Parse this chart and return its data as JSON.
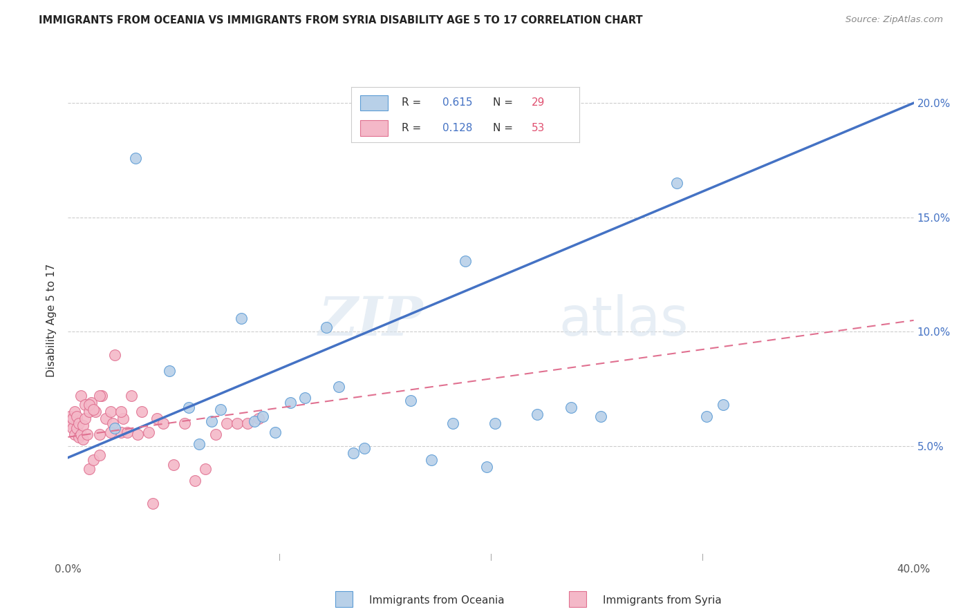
{
  "title": "IMMIGRANTS FROM OCEANIA VS IMMIGRANTS FROM SYRIA DISABILITY AGE 5 TO 17 CORRELATION CHART",
  "source": "Source: ZipAtlas.com",
  "ylabel": "Disability Age 5 to 17",
  "xlim": [
    0.0,
    0.4
  ],
  "ylim": [
    0.0,
    0.21
  ],
  "xticks": [
    0.0,
    0.1,
    0.2,
    0.3,
    0.4
  ],
  "xtick_labels": [
    "0.0%",
    "",
    "",
    "",
    "40.0%"
  ],
  "yticks_right": [
    0.05,
    0.1,
    0.15,
    0.2
  ],
  "ytick_labels_right": [
    "5.0%",
    "10.0%",
    "15.0%",
    "20.0%"
  ],
  "color_oceania": "#b8d0e8",
  "color_oceania_edge": "#5b9bd5",
  "color_oceania_line": "#4472c4",
  "color_syria": "#f4b8c8",
  "color_syria_edge": "#e07090",
  "color_syria_line": "#e07090",
  "watermark_zip": "ZIP",
  "watermark_atlas": "atlas",
  "oceania_x": [
    0.022,
    0.032,
    0.048,
    0.057,
    0.062,
    0.068,
    0.072,
    0.082,
    0.088,
    0.092,
    0.098,
    0.105,
    0.112,
    0.122,
    0.128,
    0.135,
    0.14,
    0.162,
    0.172,
    0.182,
    0.188,
    0.198,
    0.202,
    0.222,
    0.238,
    0.252,
    0.288,
    0.302,
    0.31
  ],
  "oceania_y": [
    0.058,
    0.176,
    0.083,
    0.067,
    0.051,
    0.061,
    0.066,
    0.106,
    0.061,
    0.063,
    0.056,
    0.069,
    0.071,
    0.102,
    0.076,
    0.047,
    0.049,
    0.07,
    0.044,
    0.06,
    0.131,
    0.041,
    0.06,
    0.064,
    0.067,
    0.063,
    0.165,
    0.063,
    0.068
  ],
  "syria_x": [
    0.001,
    0.001,
    0.002,
    0.002,
    0.003,
    0.003,
    0.004,
    0.004,
    0.005,
    0.005,
    0.006,
    0.006,
    0.007,
    0.007,
    0.008,
    0.008,
    0.009,
    0.01,
    0.01,
    0.011,
    0.012,
    0.013,
    0.015,
    0.015,
    0.016,
    0.018,
    0.02,
    0.021,
    0.022,
    0.025,
    0.026,
    0.028,
    0.03,
    0.033,
    0.035,
    0.038,
    0.04,
    0.042,
    0.045,
    0.05,
    0.055,
    0.06,
    0.065,
    0.07,
    0.075,
    0.08,
    0.085,
    0.09,
    0.01,
    0.012,
    0.015,
    0.02,
    0.025
  ],
  "syria_y": [
    0.06,
    0.063,
    0.058,
    0.062,
    0.055,
    0.065,
    0.058,
    0.063,
    0.054,
    0.06,
    0.055,
    0.072,
    0.053,
    0.059,
    0.062,
    0.068,
    0.055,
    0.04,
    0.065,
    0.069,
    0.044,
    0.065,
    0.046,
    0.055,
    0.072,
    0.062,
    0.065,
    0.06,
    0.09,
    0.056,
    0.062,
    0.056,
    0.072,
    0.055,
    0.065,
    0.056,
    0.025,
    0.062,
    0.06,
    0.042,
    0.06,
    0.035,
    0.04,
    0.055,
    0.06,
    0.06,
    0.06,
    0.062,
    0.068,
    0.066,
    0.072,
    0.056,
    0.065
  ],
  "oceania_line_x": [
    0.0,
    0.4
  ],
  "oceania_line_y": [
    0.045,
    0.2
  ],
  "syria_line_x": [
    0.0,
    0.4
  ],
  "syria_line_y": [
    0.054,
    0.105
  ]
}
